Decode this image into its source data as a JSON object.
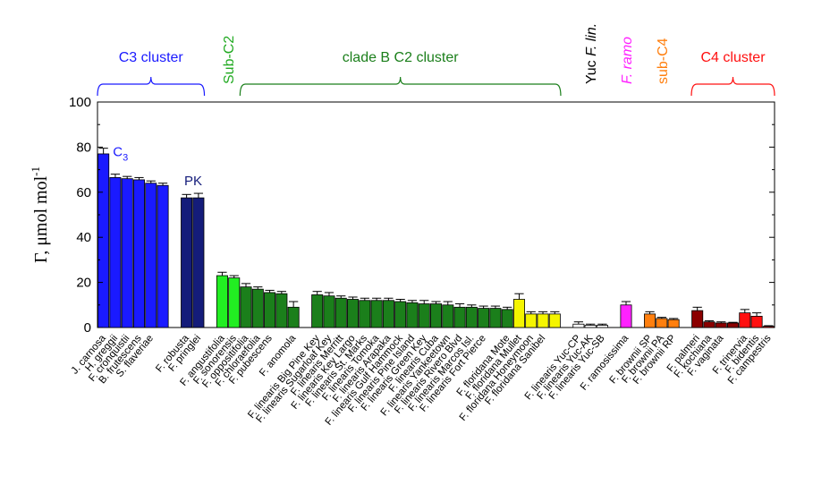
{
  "chart_data": {
    "type": "bar",
    "ylabel": "Γ, μmol mol",
    "ylabel_sup": "-1",
    "ylim": [
      0,
      100
    ],
    "yticks": [
      0,
      20,
      40,
      60,
      80,
      100
    ],
    "grid": false,
    "bars": [
      {
        "label": "J. carnosa",
        "value": 77,
        "error": 2.5,
        "color": "#1a1aff"
      },
      {
        "label": "H. greggii",
        "value": 66.5,
        "error": 1.5,
        "color": "#1a1aff"
      },
      {
        "label": "F. cronquistii",
        "value": 66,
        "error": 1,
        "color": "#1a1aff"
      },
      {
        "label": "B. frutescens",
        "value": 65.5,
        "error": 1,
        "color": "#1a1aff"
      },
      {
        "label": "S. flaveriae",
        "value": 64,
        "error": 1,
        "color": "#1a1aff"
      },
      {
        "label": "",
        "value": 63,
        "error": 1,
        "color": "#1a1aff"
      },
      {
        "label": "",
        "value": null,
        "color": "none"
      },
      {
        "label": "F. robusta",
        "value": 57.5,
        "error": 1.5,
        "color": "#141c7a"
      },
      {
        "label": "F. pringlei",
        "value": 57.5,
        "error": 2,
        "color": "#141c7a"
      },
      {
        "label": "",
        "value": null,
        "color": "none"
      },
      {
        "label": "F. angustifolia",
        "value": 23,
        "error": 1.5,
        "color": "#22ee22"
      },
      {
        "label": "F. sonorensis",
        "value": 22,
        "error": 1,
        "color": "#22ee22"
      },
      {
        "label": "F. oppositifolia",
        "value": 18,
        "error": 1.5,
        "color": "#1b7f1b"
      },
      {
        "label": "F. chloraefolia",
        "value": 17,
        "error": 1,
        "color": "#1b7f1b"
      },
      {
        "label": "F. pubescens",
        "value": 15.5,
        "error": 1,
        "color": "#1b7f1b"
      },
      {
        "label": "",
        "value": 15,
        "error": 1,
        "color": "#1b7f1b"
      },
      {
        "label": "F. anomola",
        "value": 9,
        "error": 2.5,
        "color": "#1b7f1b"
      },
      {
        "label": "",
        "value": null,
        "color": "none"
      },
      {
        "label": "F. linearis Big Pine Key",
        "value": 14.5,
        "error": 1.5,
        "color": "#1b7f1b"
      },
      {
        "label": "F. linearis Sugarloaf Key",
        "value": 14,
        "error": 1.5,
        "color": "#1b7f1b"
      },
      {
        "label": "F. linearis Merritt",
        "value": 13,
        "error": 1,
        "color": "#1b7f1b"
      },
      {
        "label": "F. linearis Key Largo",
        "value": 12.5,
        "error": 1,
        "color": "#1b7f1b"
      },
      {
        "label": "F. linearis St. Marks",
        "value": 12,
        "error": 1,
        "color": "#1b7f1b"
      },
      {
        "label": "F. linearis Tomoka",
        "value": 12,
        "error": 1,
        "color": "#1b7f1b"
      },
      {
        "label": "F. linearis Arapaka",
        "value": 12,
        "error": 1,
        "color": "#1b7f1b"
      },
      {
        "label": "F. linearis Gulf Hammock",
        "value": 11.5,
        "error": 1,
        "color": "#1b7f1b"
      },
      {
        "label": "F. linearis Pine Island",
        "value": 11,
        "error": 1,
        "color": "#1b7f1b"
      },
      {
        "label": "F. linearis Green Key",
        "value": 10.5,
        "error": 1.5,
        "color": "#1b7f1b"
      },
      {
        "label": "F. linearis Cuba",
        "value": 10.5,
        "error": 1,
        "color": "#1b7f1b"
      },
      {
        "label": "F. linearis Yankeetown",
        "value": 10,
        "error": 1.5,
        "color": "#1b7f1b"
      },
      {
        "label": "F. linearis Rivero Blvd",
        "value": 9,
        "error": 1.5,
        "color": "#1b7f1b"
      },
      {
        "label": "F. linearis Marcos Isl.",
        "value": 9,
        "error": 1,
        "color": "#1b7f1b"
      },
      {
        "label": "F. linearis Fort Pierce",
        "value": 8.5,
        "error": 1,
        "color": "#1b7f1b"
      },
      {
        "label": "",
        "value": 8.5,
        "error": 1,
        "color": "#1b7f1b"
      },
      {
        "label": "F. floridana Mote",
        "value": 8,
        "error": 1,
        "color": "#1b7f1b"
      },
      {
        "label": "F. floridana Mullet",
        "value": 12.5,
        "error": 2.5,
        "color": "#f5f500"
      },
      {
        "label": "F. floridana Honeymoon",
        "value": 6,
        "error": 1,
        "color": "#f5f500"
      },
      {
        "label": "F. floridana Sanibel",
        "value": 6,
        "error": 1,
        "color": "#f5f500"
      },
      {
        "label": "",
        "value": 6,
        "error": 1,
        "color": "#f5f500"
      },
      {
        "label": "",
        "value": null,
        "color": "none"
      },
      {
        "label": "F. linearis Yuc-CP",
        "value": 1.5,
        "error": 1,
        "color": "#ffffff"
      },
      {
        "label": "F. linearis Yuc-AK",
        "value": 1,
        "error": 0.5,
        "color": "#ffffff"
      },
      {
        "label": "F. linearis Yuc-SB",
        "value": 1,
        "error": 0.5,
        "color": "#ffffff"
      },
      {
        "label": "",
        "value": null,
        "color": "none"
      },
      {
        "label": "F. ramosissima",
        "value": 10,
        "error": 1.5,
        "color": "#ff22ff"
      },
      {
        "label": "",
        "value": null,
        "color": "none"
      },
      {
        "label": "F. brownii SP",
        "value": 6,
        "error": 1,
        "color": "#ff7f0e"
      },
      {
        "label": "F. brownii PA",
        "value": 4,
        "error": 0.5,
        "color": "#ff7f0e"
      },
      {
        "label": "F. brownii RP",
        "value": 3.5,
        "error": 0.5,
        "color": "#ff7f0e"
      },
      {
        "label": "",
        "value": null,
        "color": "none"
      },
      {
        "label": "F. palmeri",
        "value": 7.5,
        "error": 1.5,
        "color": "#8b0000"
      },
      {
        "label": "F. kochiana",
        "value": 2.5,
        "error": 0.5,
        "color": "#8b0000"
      },
      {
        "label": "F. vaginata",
        "value": 2,
        "error": 0.5,
        "color": "#8b0000"
      },
      {
        "label": "",
        "value": 2,
        "error": 0.3,
        "color": "#8b0000"
      },
      {
        "label": "F. trinervia",
        "value": 6.5,
        "error": 1.5,
        "color": "#ff1010"
      },
      {
        "label": "F. bidentis",
        "value": 5,
        "error": 1.5,
        "color": "#ff1010"
      },
      {
        "label": "F. campestris",
        "value": 0.5,
        "error": 0.3,
        "color": "#ff1010"
      }
    ],
    "groups": [
      {
        "label": "C3 cluster",
        "from": 0,
        "to": 8,
        "color": "#1a1aff",
        "bracket": true,
        "vertical": false
      },
      {
        "label": "Sub-C2",
        "from": 10,
        "to": 11,
        "color": "#22aa22",
        "bracket": false,
        "vertical": true
      },
      {
        "label": "clade B C2 cluster",
        "from": 12,
        "to": 38,
        "color": "#1b7f1b",
        "bracket": true,
        "vertical": false
      },
      {
        "label": "Yuc F. lin.",
        "from": 40,
        "to": 42,
        "color": "#000000",
        "bracket": false,
        "vertical": true,
        "italic_part": "F. lin."
      },
      {
        "label": "F. ramo",
        "from": 44,
        "to": 44,
        "color": "#ff22ff",
        "bracket": false,
        "vertical": true,
        "italic": true
      },
      {
        "label": "sub-C4",
        "from": 46,
        "to": 48,
        "color": "#ff7f0e",
        "bracket": false,
        "vertical": true
      },
      {
        "label": "C4 cluster",
        "from": 50,
        "to": 56,
        "color": "#ff1010",
        "bracket": true,
        "vertical": false
      }
    ],
    "annotations": [
      {
        "text": "C",
        "sub": "3",
        "at_bar": 1,
        "value": 76,
        "color": "#1a1aff"
      },
      {
        "text": "PK",
        "at_bar": 7,
        "value": 63,
        "color": "#141c7a"
      }
    ]
  }
}
